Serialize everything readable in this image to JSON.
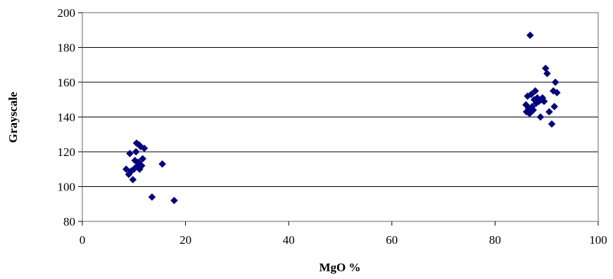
{
  "chart_data": {
    "type": "scatter",
    "title": "",
    "xlabel": "MgO %",
    "ylabel": "Grayscale",
    "xlim": [
      0,
      100
    ],
    "ylim": [
      80,
      200
    ],
    "x_ticks": [
      0,
      20,
      40,
      60,
      80,
      100
    ],
    "y_ticks": [
      80,
      100,
      120,
      140,
      160,
      180,
      200
    ],
    "grid": "horizontal",
    "legend": "none",
    "marker": "diamond",
    "marker_color": "#000080",
    "series": [
      {
        "points": [
          [
            8.5,
            110
          ],
          [
            9.0,
            107
          ],
          [
            9.2,
            119
          ],
          [
            9.5,
            109
          ],
          [
            9.8,
            104
          ],
          [
            10.0,
            110
          ],
          [
            10.2,
            115
          ],
          [
            10.4,
            120
          ],
          [
            10.5,
            125
          ],
          [
            10.7,
            112
          ],
          [
            10.9,
            114
          ],
          [
            11.0,
            124
          ],
          [
            11.1,
            110
          ],
          [
            11.3,
            123
          ],
          [
            11.5,
            112
          ],
          [
            11.7,
            116
          ],
          [
            12.0,
            122
          ],
          [
            13.5,
            94
          ],
          [
            15.5,
            113
          ],
          [
            17.8,
            92
          ],
          [
            86.0,
            147
          ],
          [
            86.1,
            143
          ],
          [
            86.3,
            152
          ],
          [
            86.5,
            145
          ],
          [
            86.7,
            142
          ],
          [
            86.8,
            187
          ],
          [
            87.0,
            153
          ],
          [
            87.2,
            146
          ],
          [
            87.4,
            144
          ],
          [
            87.6,
            150
          ],
          [
            87.8,
            155
          ],
          [
            88.0,
            148
          ],
          [
            88.2,
            151
          ],
          [
            88.5,
            149
          ],
          [
            88.8,
            140
          ],
          [
            89.0,
            150
          ],
          [
            89.2,
            151
          ],
          [
            89.5,
            149
          ],
          [
            89.8,
            168
          ],
          [
            90.1,
            165
          ],
          [
            90.5,
            143
          ],
          [
            91.0,
            136
          ],
          [
            91.3,
            155
          ],
          [
            91.5,
            146
          ],
          [
            91.7,
            160
          ],
          [
            92.0,
            154
          ]
        ]
      }
    ]
  }
}
